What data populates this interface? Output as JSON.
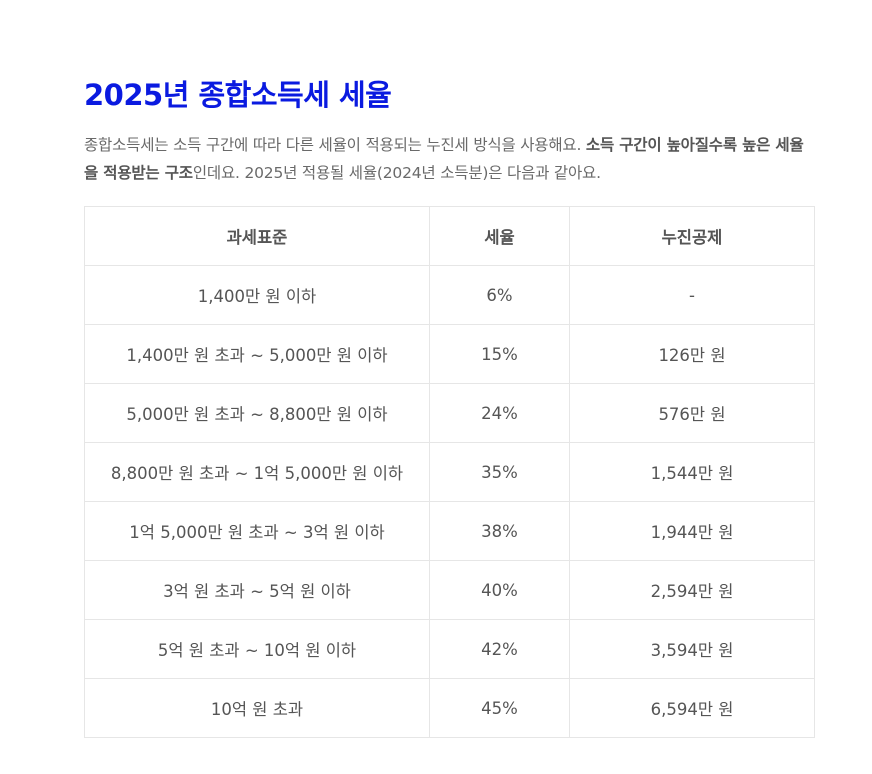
{
  "article": {
    "title": "2025년 종합소득세 세율",
    "desc_part1": "종합소득세는 소득 구간에 따라 다른 세율이 적용되는 누진세 방식을 사용해요. ",
    "desc_bold": "소득 구간이 높아질수록 높은 세율을 적용받는 구조",
    "desc_part2": "인데요. 2025년 적용될 세율(2024년 소득분)은 다음과 같아요."
  },
  "table": {
    "headers": [
      "과세표준",
      "세율",
      "누진공제"
    ],
    "rows": [
      [
        "1,400만 원 이하",
        "6%",
        "-"
      ],
      [
        "1,400만 원 초과 ~ 5,000만 원 이하",
        "15%",
        "126만 원"
      ],
      [
        "5,000만 원 초과 ~ 8,800만 원 이하",
        "24%",
        "576만 원"
      ],
      [
        "8,800만 원 초과 ~ 1억 5,000만 원 이하",
        "35%",
        "1,544만 원"
      ],
      [
        "1억 5,000만 원 초과 ~ 3억 원 이하",
        "38%",
        "1,944만 원"
      ],
      [
        "3억 원 초과 ~ 5억 원 이하",
        "40%",
        "2,594만 원"
      ],
      [
        "5억 원 초과 ~ 10억 원 이하",
        "42%",
        "3,594만 원"
      ],
      [
        "10억 원 초과",
        "45%",
        "6,594만 원"
      ]
    ]
  },
  "colors": {
    "title": "#0a1ae0",
    "text": "#555555",
    "border": "#e6e6e6"
  }
}
